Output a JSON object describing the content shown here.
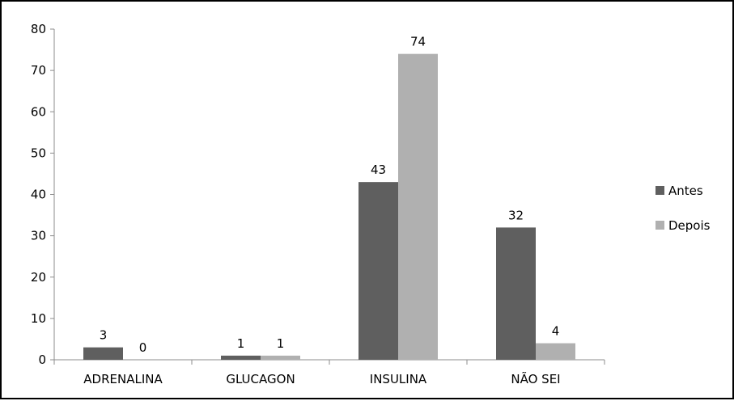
{
  "chart_data": {
    "type": "bar",
    "title": "",
    "xlabel": "",
    "ylabel": "",
    "categories": [
      "ADRENALINA",
      "GLUCAGON",
      "INSULINA",
      "NÃO SEI"
    ],
    "series": [
      {
        "name": "Antes",
        "color": "#5f5f5f",
        "values": [
          3,
          1,
          43,
          32
        ]
      },
      {
        "name": "Depois",
        "color": "#b0b0b0",
        "values": [
          0,
          1,
          74,
          4
        ]
      }
    ],
    "ylim": [
      0,
      80
    ],
    "yticks": [
      0,
      10,
      20,
      30,
      40,
      50,
      60,
      70,
      80
    ],
    "grid": false,
    "legend_position": "right",
    "data_labels": true
  }
}
